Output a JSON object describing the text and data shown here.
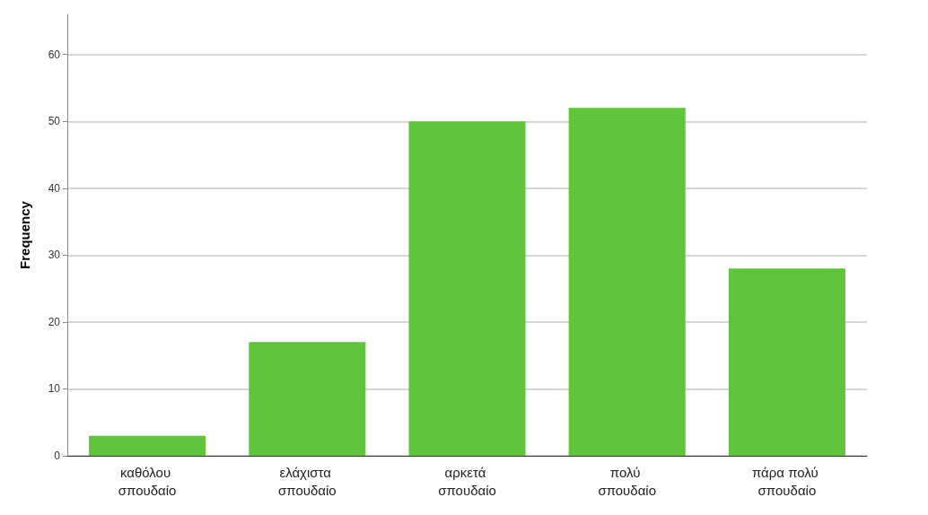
{
  "chart_data": {
    "type": "bar",
    "ylabel": "Frequency",
    "categories": [
      "καθόλου σπουδαίο",
      "ελάχιστα σπουδαίο",
      "αρκετά σπουδαίο",
      "πολύ σπουδαίο",
      "πάρα πολύ σπουδαίο"
    ],
    "values": [
      3,
      17,
      50,
      52,
      28
    ],
    "color": "#5ec43a",
    "ylim": [
      0,
      66
    ],
    "yticks": [
      0,
      10,
      20,
      30,
      40,
      50,
      60
    ],
    "grid": "y"
  }
}
